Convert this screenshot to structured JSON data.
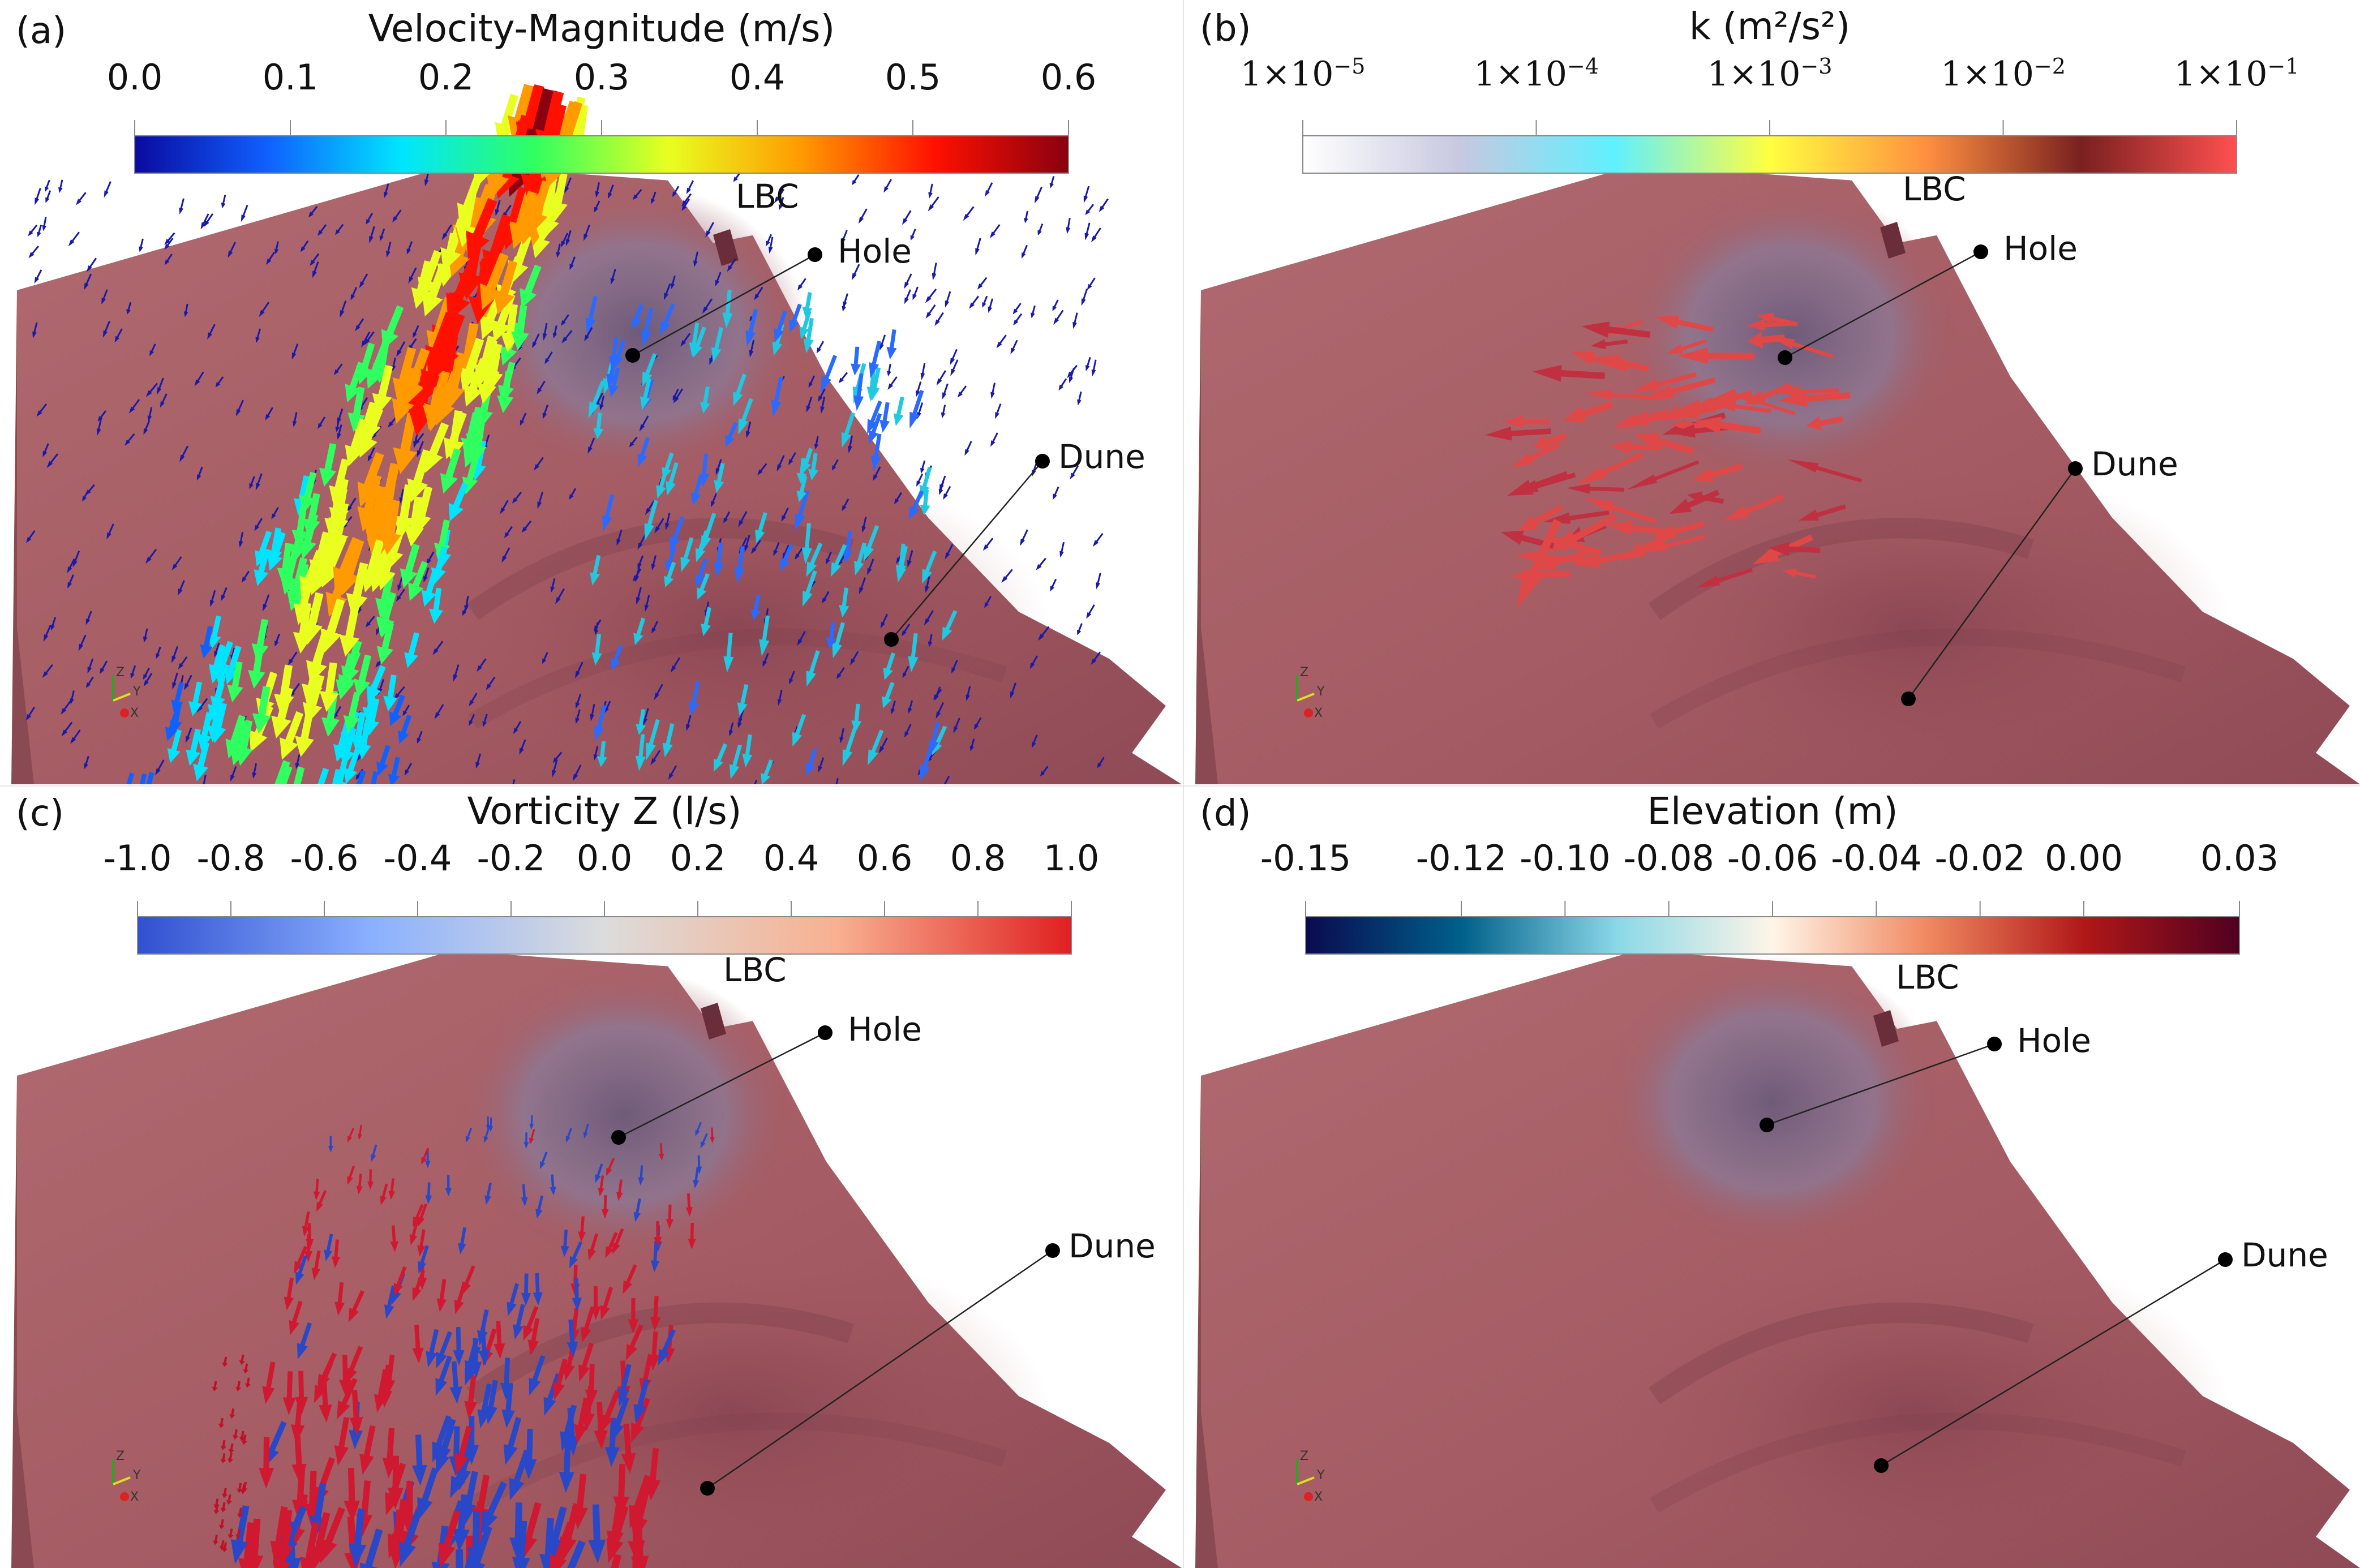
{
  "panels": {
    "a": {
      "label": "(a)",
      "colorbar": {
        "title": "Velocity-Magnitude (m/s)",
        "ticks": [
          "0.0",
          "0.1",
          "0.2",
          "0.3",
          "0.4",
          "0.5",
          "0.6"
        ],
        "colors": [
          "#0a0aa0",
          "#1060ff",
          "#00e5ff",
          "#30ff60",
          "#e8ff20",
          "#ff9a00",
          "#ff1000",
          "#8a0010"
        ]
      },
      "annotations": {
        "lbc": "LBC",
        "hole": "Hole",
        "dune": "Dune"
      }
    },
    "b": {
      "label": "(b)",
      "colorbar": {
        "title": "k  (m²/s²)",
        "ticks": [
          {
            "base": "1×10",
            "exp": "−5"
          },
          {
            "base": "1×10",
            "exp": "−4"
          },
          {
            "base": "1×10",
            "exp": "−3"
          },
          {
            "base": "1×10",
            "exp": "−2"
          },
          {
            "base": "1×10",
            "exp": "−1"
          }
        ],
        "colors": [
          "#ffffff",
          "#c8c8e0",
          "#60f0ff",
          "#ffff40",
          "#ff9040",
          "#7a2020",
          "#ff5050"
        ]
      },
      "annotations": {
        "lbc": "LBC",
        "hole": "Hole",
        "dune": "Dune"
      }
    },
    "c": {
      "label": "(c)",
      "colorbar": {
        "title": "Vorticity Z (l/s)",
        "ticks": [
          "-1.0",
          "-0.8",
          "-0.6",
          "-0.4",
          "-0.2",
          "0.0",
          "0.2",
          "0.4",
          "0.6",
          "0.8",
          "1.0"
        ],
        "colors": [
          "#3050d0",
          "#8ab0ff",
          "#dcdcdc",
          "#f8b090",
          "#e02020"
        ]
      },
      "annotations": {
        "lbc": "LBC",
        "hole": "Hole",
        "dune": "Dune"
      }
    },
    "d": {
      "label": "(d)",
      "colorbar": {
        "title": "Elevation  (m)",
        "ticks": [
          "-0.15",
          "-0.12",
          "-0.10",
          "-0.08",
          "-0.06",
          "-0.04",
          "-0.02",
          "0.00",
          "0.03"
        ],
        "tick_values": [
          -0.15,
          -0.12,
          -0.1,
          -0.08,
          -0.06,
          -0.04,
          -0.02,
          0.0,
          0.03
        ],
        "colors": [
          "#0a0a50",
          "#00608a",
          "#8ad8e8",
          "#fff5e8",
          "#f08860",
          "#b01818",
          "#500020"
        ]
      },
      "annotations": {
        "lbc": "LBC",
        "hole": "Hole",
        "dune": "Dune"
      }
    }
  },
  "axes_triad": {
    "z": "Z",
    "y": "Y",
    "x": "X"
  },
  "terrain_color": "#a45a62",
  "hole_color": "#6c5a7a"
}
